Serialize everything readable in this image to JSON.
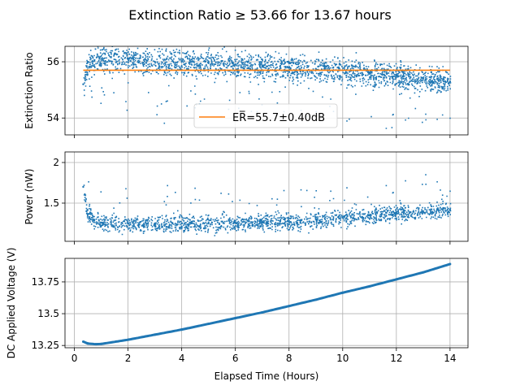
{
  "title": "Extinction Ratio ≥ 53.66 for 13.67 hours",
  "xlabel": "Elapsed Time (Hours)",
  "colors": {
    "scatter": "#1f77b4",
    "mean_line": "#ff7f0e",
    "grid": "#b0b0b0"
  },
  "chart_data": [
    {
      "type": "scatter",
      "ylabel": "Extinction Ratio",
      "grid": true,
      "xlim": [
        -0.35,
        14.67
      ],
      "ylim": [
        53.4,
        56.55
      ],
      "xticks": [
        0,
        2,
        4,
        6,
        8,
        10,
        12,
        14
      ],
      "yticks": [
        54,
        56
      ],
      "series": [
        {
          "x": [
            0.33,
            0.5,
            1,
            2,
            3,
            4,
            5,
            6,
            7,
            8,
            9,
            10,
            11,
            12,
            13,
            14
          ],
          "y": [
            55.2,
            56.0,
            56.1,
            56.1,
            56.0,
            56.0,
            55.95,
            55.9,
            55.85,
            55.8,
            55.75,
            55.7,
            55.6,
            55.5,
            55.4,
            55.3
          ],
          "band": 0.45
        },
        {
          "name": "ER",
          "kind": "line",
          "x": [
            0.33,
            14.0
          ],
          "y": [
            55.7,
            55.7
          ]
        }
      ],
      "legend": {
        "text": "ER̅=55.7±0.40dB",
        "placement": "lower-center"
      }
    },
    {
      "type": "scatter",
      "ylabel": "Power (nW)",
      "grid": true,
      "xlim": [
        -0.35,
        14.67
      ],
      "ylim": [
        1.03,
        2.13
      ],
      "xticks": [
        0,
        2,
        4,
        6,
        8,
        10,
        12,
        14
      ],
      "yticks": [
        1.5,
        2.0
      ],
      "series": [
        {
          "x": [
            0.33,
            0.45,
            0.7,
            1,
            2,
            3,
            4,
            5,
            6,
            7,
            8,
            9,
            10,
            11,
            12,
            13,
            14
          ],
          "y": [
            1.7,
            1.4,
            1.3,
            1.26,
            1.25,
            1.25,
            1.25,
            1.25,
            1.26,
            1.27,
            1.28,
            1.3,
            1.32,
            1.35,
            1.38,
            1.4,
            1.42
          ],
          "band": 0.1
        }
      ]
    },
    {
      "type": "line",
      "ylabel": "DC Applied Voltage (V)",
      "grid": true,
      "xlim": [
        -0.35,
        14.67
      ],
      "ylim": [
        13.232,
        13.935
      ],
      "xticks": [
        0,
        2,
        4,
        6,
        8,
        10,
        12,
        14
      ],
      "xticklabels": [
        "0",
        "2",
        "4",
        "6",
        "8",
        "10",
        "12",
        "14"
      ],
      "yticks": [
        13.25,
        13.5,
        13.75
      ],
      "series": [
        {
          "x": [
            0.33,
            0.5,
            0.8,
            1,
            2,
            3,
            4,
            5,
            6,
            7,
            8,
            9,
            10,
            11,
            12,
            13,
            14
          ],
          "y": [
            13.28,
            13.265,
            13.26,
            13.262,
            13.295,
            13.335,
            13.375,
            13.42,
            13.465,
            13.51,
            13.56,
            13.61,
            13.665,
            13.715,
            13.77,
            13.825,
            13.89
          ]
        }
      ]
    }
  ]
}
